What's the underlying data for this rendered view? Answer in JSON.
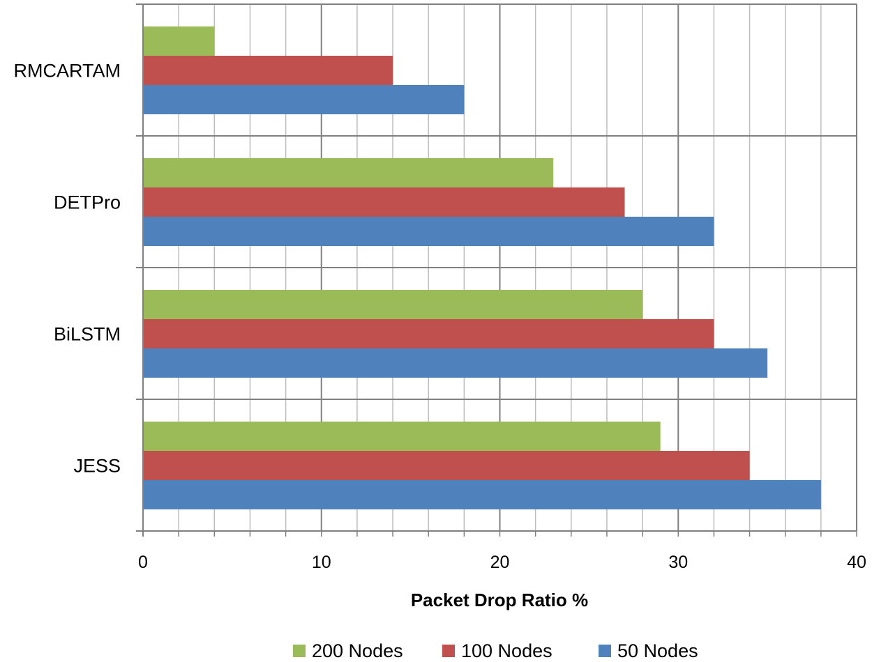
{
  "chart_data": {
    "type": "bar",
    "orientation": "horizontal",
    "title": "",
    "categories": [
      "RMCARTAM",
      "DETPro",
      "BiLSTM",
      "JESS"
    ],
    "series": [
      {
        "name": "200 Nodes",
        "color": "#9bbb59",
        "values": [
          4,
          23,
          28,
          29
        ]
      },
      {
        "name": "100 Nodes",
        "color": "#c0504d",
        "values": [
          14,
          27,
          32,
          34
        ]
      },
      {
        "name": "50 Nodes",
        "color": "#4f81bd",
        "values": [
          18,
          32,
          35,
          38
        ]
      }
    ],
    "xlabel": "Packet Drop Ratio %",
    "ylabel": "",
    "xlim": [
      0,
      40
    ],
    "xticks": [
      "0",
      "10",
      "20",
      "30",
      "40"
    ],
    "grid": true,
    "legend_position": "bottom"
  }
}
